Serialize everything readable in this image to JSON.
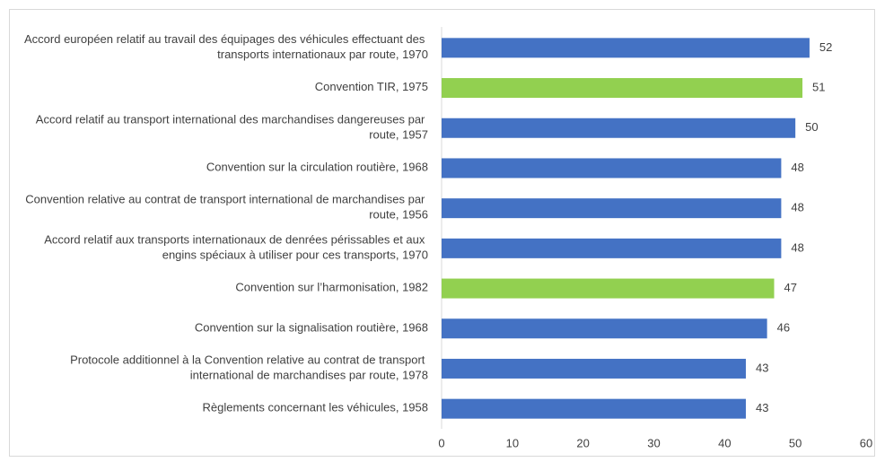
{
  "chart_data": {
    "type": "bar",
    "orientation": "horizontal",
    "categories": [
      "Accord européen relatif au travail des équipages des véhicules effectuant des transports internationaux par route, 1970",
      "Convention TIR, 1975",
      "Accord relatif au transport international des marchandises dangereuses par route, 1957",
      "Convention sur la circulation routière, 1968",
      "Convention relative au contrat de transport international de marchandises par route, 1956",
      "Accord relatif aux transports internationaux de denrées périssables et aux engins spéciaux à utiliser pour ces transports, 1970",
      "Convention sur l’harmonisation, 1982",
      "Convention sur la signalisation routière, 1968",
      "Protocole additionnel à la Convention relative au contrat de transport international de marchandises par route, 1978",
      "Règlements concernant les véhicules, 1958"
    ],
    "values": [
      52,
      51,
      50,
      48,
      48,
      48,
      47,
      46,
      43,
      43
    ],
    "colors": [
      "#4472c4",
      "#92d050",
      "#4472c4",
      "#4472c4",
      "#4472c4",
      "#4472c4",
      "#92d050",
      "#4472c4",
      "#4472c4",
      "#4472c4"
    ],
    "xlim": [
      0,
      60
    ],
    "xticks": [
      0,
      10,
      20,
      30,
      40,
      50,
      60
    ],
    "grid": false
  }
}
